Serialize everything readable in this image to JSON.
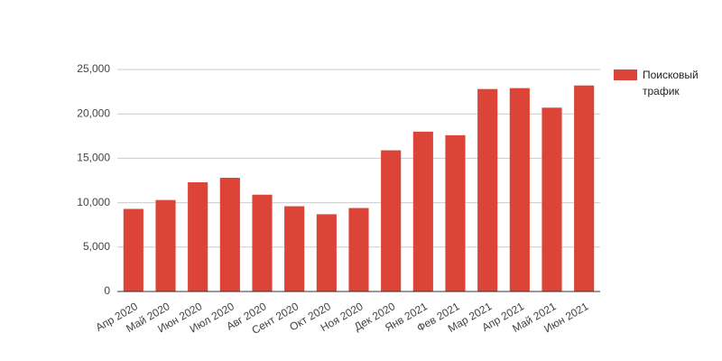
{
  "chart_data": {
    "type": "bar",
    "categories": [
      "Апр 2020",
      "Май 2020",
      "Июн 2020",
      "Июл 2020",
      "Авг 2020",
      "Сент 2020",
      "Окт 2020",
      "Ноя 2020",
      "Дек 2020",
      "Янв 2021",
      "Фев 2021",
      "Мар 2021",
      "Апр 2021",
      "Май 2021",
      "Июн 2021"
    ],
    "series": [
      {
        "name": "Поисковый трафик",
        "color": "#db4437",
        "values": [
          9300,
          10300,
          12300,
          12800,
          10900,
          9600,
          8700,
          9400,
          15900,
          18000,
          17600,
          22800,
          22900,
          20700,
          23200
        ]
      }
    ],
    "ylim": [
      0,
      25000
    ],
    "yticks": [
      0,
      {
        "value": 5000,
        "label": "5,000"
      },
      {
        "value": 10000,
        "label": "10,000"
      },
      {
        "value": 15000,
        "label": "15,000"
      },
      {
        "value": 20000,
        "label": "20,000"
      },
      {
        "value": 25000,
        "label": "25,000"
      }
    ],
    "grid": true,
    "legend": "right"
  }
}
